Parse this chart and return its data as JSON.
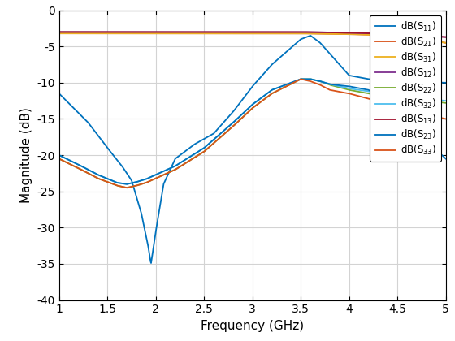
{
  "xlabel": "Frequency (GHz)",
  "ylabel": "Magnitude (dB)",
  "xlim": [
    1,
    5
  ],
  "ylim": [
    -40,
    0
  ],
  "xticks": [
    1.0,
    1.5,
    2.0,
    2.5,
    3.0,
    3.5,
    4.0,
    4.5,
    5.0
  ],
  "yticks": [
    0,
    -5,
    -10,
    -15,
    -20,
    -25,
    -30,
    -35,
    -40
  ],
  "legend_labels": [
    "dB(S$_{11}$)",
    "dB(S$_{21}$)",
    "dB(S$_{31}$)",
    "dB(S$_{12}$)",
    "dB(S$_{22}$)",
    "dB(S$_{32}$)",
    "dB(S$_{13}$)",
    "dB(S$_{23}$)",
    "dB(S$_{33}$)"
  ],
  "line_colors": [
    "#0072BD",
    "#D95319",
    "#EDB120",
    "#7E2F8E",
    "#77AC30",
    "#4DBEEE",
    "#A2142F",
    "#0072BD",
    "#D95319"
  ],
  "figsize": [
    5.6,
    4.2
  ],
  "dpi": 100,
  "bg": "#ffffff",
  "grid_color": "#d3d3d3",
  "S11_x": [
    1.0,
    1.3,
    1.5,
    1.65,
    1.75,
    1.85,
    1.92,
    1.95,
    2.0,
    2.08,
    2.2,
    2.4,
    2.6,
    2.8,
    3.0,
    3.2,
    3.5,
    3.6,
    3.7,
    3.8,
    4.0,
    4.2,
    4.5,
    5.0
  ],
  "S11_y": [
    -11.5,
    -15.5,
    -19.0,
    -21.5,
    -23.5,
    -28.0,
    -32.5,
    -35.0,
    -30.5,
    -24.0,
    -20.5,
    -18.5,
    -17.0,
    -14.0,
    -10.5,
    -7.5,
    -4.0,
    -3.5,
    -4.5,
    -6.0,
    -9.0,
    -9.5,
    -9.8,
    -10.0
  ],
  "S21_x": [
    1.0,
    1.5,
    2.0,
    2.5,
    3.0,
    3.5,
    4.0,
    4.5,
    5.0
  ],
  "S21_y": [
    -3.2,
    -3.2,
    -3.2,
    -3.2,
    -3.2,
    -3.2,
    -3.3,
    -3.5,
    -4.5
  ],
  "S31_x": [
    1.0,
    1.5,
    2.0,
    2.5,
    3.0,
    3.5,
    4.0,
    4.5,
    5.0
  ],
  "S31_y": [
    -3.2,
    -3.2,
    -3.2,
    -3.2,
    -3.2,
    -3.2,
    -3.3,
    -3.5,
    -4.5
  ],
  "S12_x": [
    1.0,
    1.5,
    2.0,
    2.5,
    3.0,
    3.5,
    4.0,
    4.5,
    5.0
  ],
  "S12_y": [
    -3.0,
    -3.0,
    -3.0,
    -3.0,
    -3.0,
    -3.0,
    -3.1,
    -3.3,
    -3.7
  ],
  "S22_x": [
    1.0,
    1.2,
    1.4,
    1.6,
    1.7,
    1.8,
    1.9,
    2.0,
    2.2,
    2.5,
    2.8,
    3.0,
    3.2,
    3.5,
    3.6,
    3.7,
    3.8,
    4.0,
    4.2,
    4.5,
    5.0
  ],
  "S22_y": [
    -20.5,
    -21.8,
    -23.2,
    -24.2,
    -24.5,
    -24.2,
    -23.8,
    -23.2,
    -22.0,
    -19.5,
    -16.0,
    -13.5,
    -11.5,
    -9.5,
    -9.5,
    -9.8,
    -10.3,
    -11.0,
    -11.5,
    -12.0,
    -12.8
  ],
  "S32_x": [
    1.0,
    1.2,
    1.4,
    1.6,
    1.7,
    1.8,
    1.9,
    2.0,
    2.2,
    2.5,
    2.8,
    3.0,
    3.2,
    3.5,
    3.6,
    3.7,
    3.8,
    4.0,
    4.2,
    4.5,
    5.0
  ],
  "S32_y": [
    -20.0,
    -21.3,
    -22.7,
    -23.8,
    -24.0,
    -23.7,
    -23.3,
    -22.7,
    -21.5,
    -19.0,
    -15.5,
    -13.0,
    -11.0,
    -9.5,
    -9.5,
    -9.8,
    -10.2,
    -10.8,
    -11.2,
    -11.8,
    -12.5
  ],
  "S13_x": [
    1.0,
    1.5,
    2.0,
    2.5,
    3.0,
    3.5,
    4.0,
    4.5,
    5.0
  ],
  "S13_y": [
    -3.0,
    -3.0,
    -3.0,
    -3.0,
    -3.0,
    -3.0,
    -3.1,
    -3.3,
    -3.7
  ],
  "S23_x": [
    1.0,
    1.2,
    1.4,
    1.6,
    1.7,
    1.8,
    1.9,
    2.0,
    2.2,
    2.5,
    2.8,
    3.0,
    3.2,
    3.5,
    3.6,
    3.7,
    3.8,
    4.0,
    4.2,
    4.5,
    4.8,
    5.0
  ],
  "S23_y": [
    -20.0,
    -21.3,
    -22.7,
    -23.8,
    -24.0,
    -23.7,
    -23.3,
    -22.7,
    -21.5,
    -19.0,
    -15.5,
    -13.0,
    -11.0,
    -9.5,
    -9.5,
    -9.8,
    -10.2,
    -10.5,
    -11.0,
    -13.0,
    -18.0,
    -20.5
  ],
  "S33_x": [
    1.0,
    1.2,
    1.4,
    1.6,
    1.7,
    1.8,
    1.9,
    2.0,
    2.2,
    2.5,
    2.8,
    3.0,
    3.2,
    3.5,
    3.6,
    3.7,
    3.8,
    4.0,
    4.2,
    4.5,
    5.0
  ],
  "S33_y": [
    -20.5,
    -21.8,
    -23.2,
    -24.2,
    -24.5,
    -24.2,
    -23.8,
    -23.2,
    -22.0,
    -19.5,
    -16.0,
    -13.5,
    -11.5,
    -9.5,
    -9.8,
    -10.3,
    -11.0,
    -11.5,
    -12.2,
    -13.5,
    -15.0
  ]
}
